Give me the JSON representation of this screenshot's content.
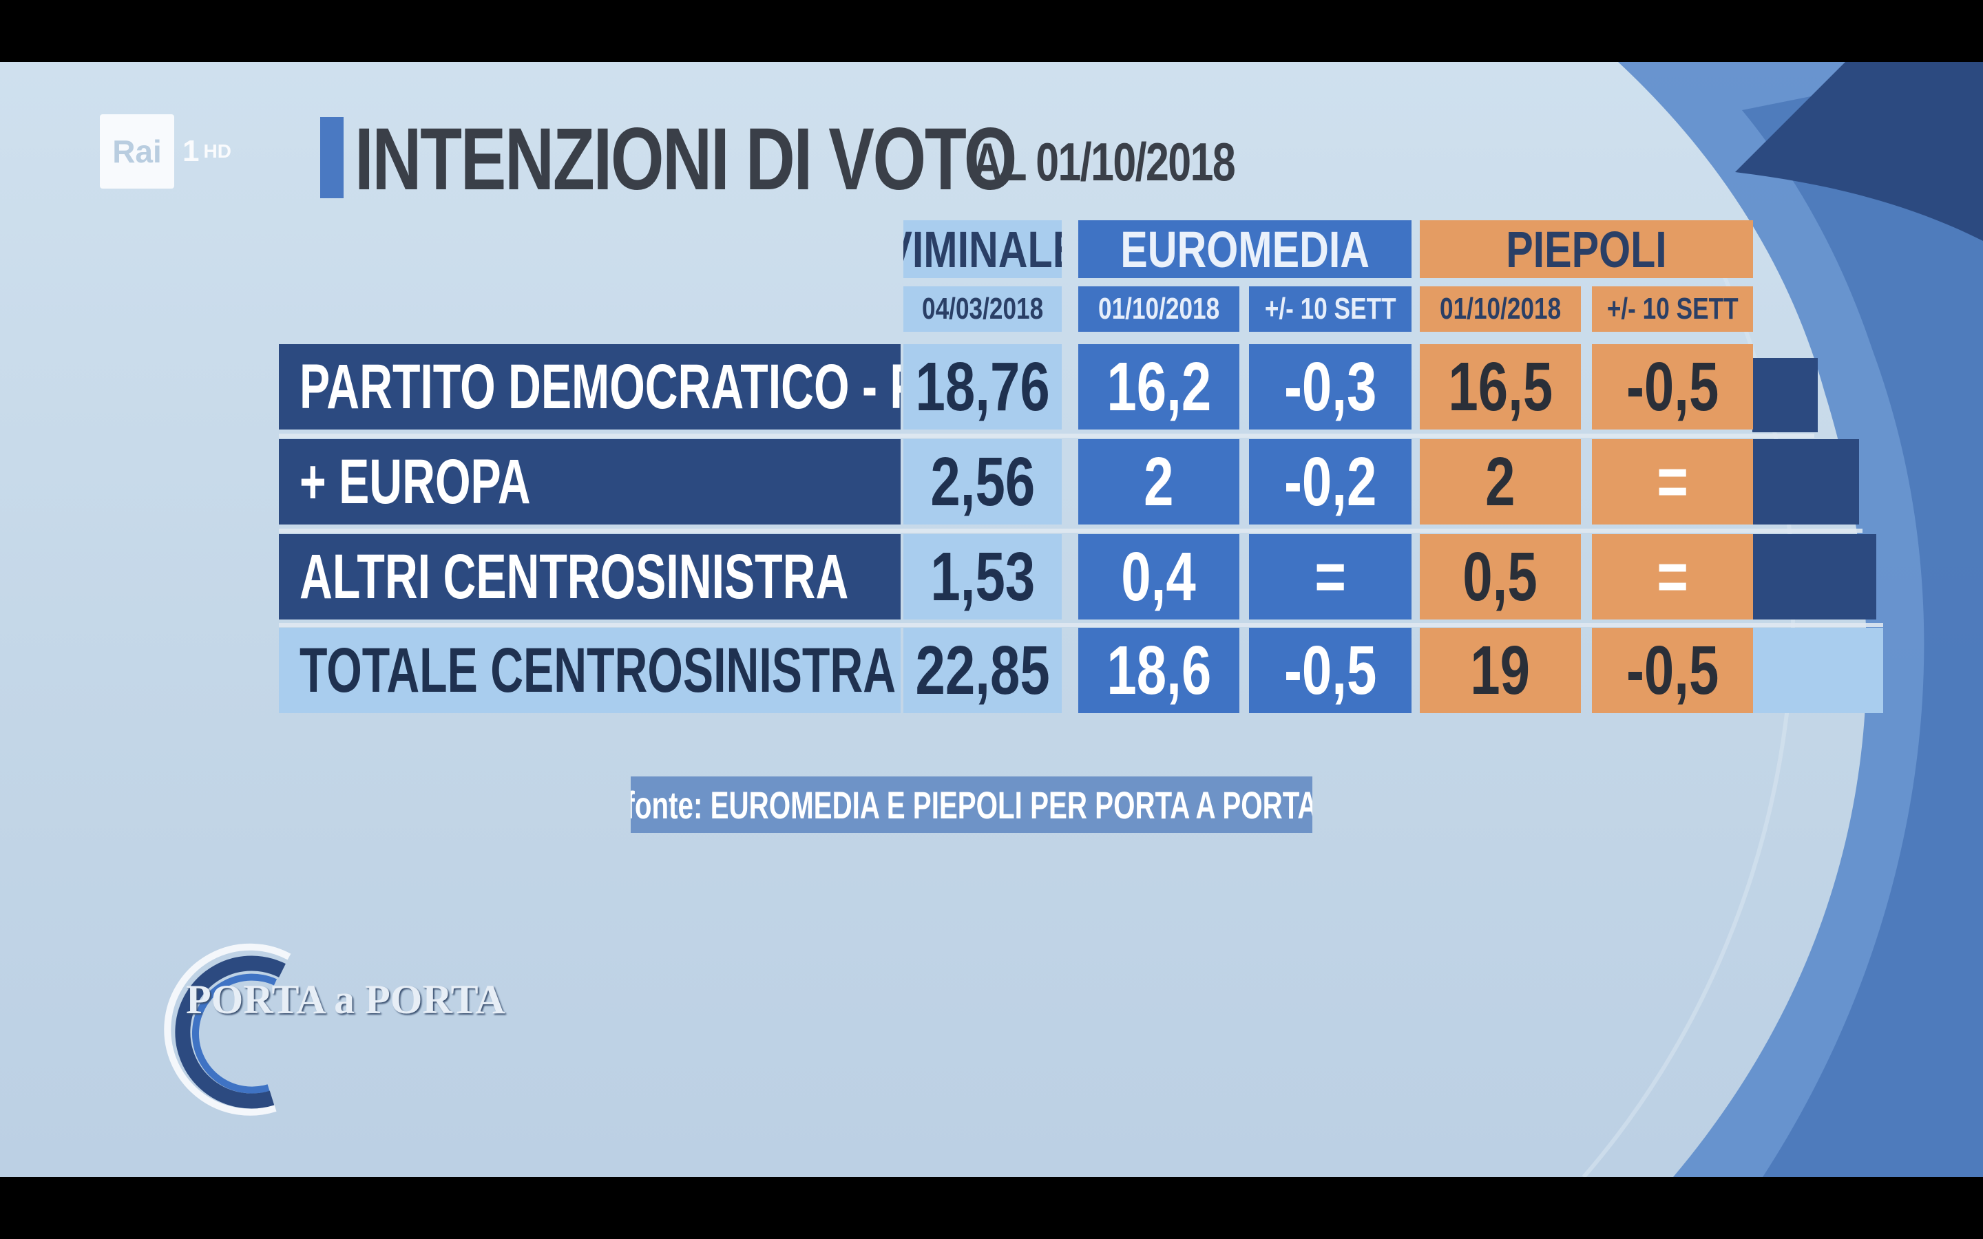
{
  "channel": {
    "logo": "Rai",
    "number": "1",
    "hd": "HD"
  },
  "title": {
    "main": "INTENZIONI DI VOTO",
    "date": "AL 01/10/2018"
  },
  "columns": {
    "viminale": {
      "label": "VIMINALE",
      "date": "04/03/2018"
    },
    "euromedia": {
      "label": "EUROMEDIA",
      "date": "01/10/2018",
      "delta": "+/- 10 SETT"
    },
    "piepoli": {
      "label": "PIEPOLI",
      "date": "01/10/2018",
      "delta": "+/- 10 SETT"
    }
  },
  "rows": [
    {
      "label": "PARTITO DEMOCRATICO - PSE",
      "viminale": "18,76",
      "euromedia": "16,2",
      "euromedia_delta": "-0,3",
      "piepoli": "16,5",
      "piepoli_delta": "-0,5"
    },
    {
      "label": "+ EUROPA",
      "viminale": "2,56",
      "euromedia": "2",
      "euromedia_delta": "-0,2",
      "piepoli": "2",
      "piepoli_delta": "="
    },
    {
      "label": "ALTRI CENTROSINISTRA",
      "viminale": "1,53",
      "euromedia": "0,4",
      "euromedia_delta": "=",
      "piepoli": "0,5",
      "piepoli_delta": "="
    },
    {
      "label": "TOTALE CENTROSINISTRA",
      "viminale": "22,85",
      "euromedia": "18,6",
      "euromedia_delta": "-0,5",
      "piepoli": "19",
      "piepoli_delta": "-0,5"
    }
  ],
  "source": "fonte: EUROMEDIA E PIEPOLI PER PORTA A PORTA",
  "show_logo": "PORTA a PORTA",
  "colors": {
    "viminale": "#a9cdee",
    "label_dark": "#2c4a80",
    "euromedia": "#3f73c4",
    "piepoli": "#e49c63",
    "total_row": "#a9cdee"
  }
}
